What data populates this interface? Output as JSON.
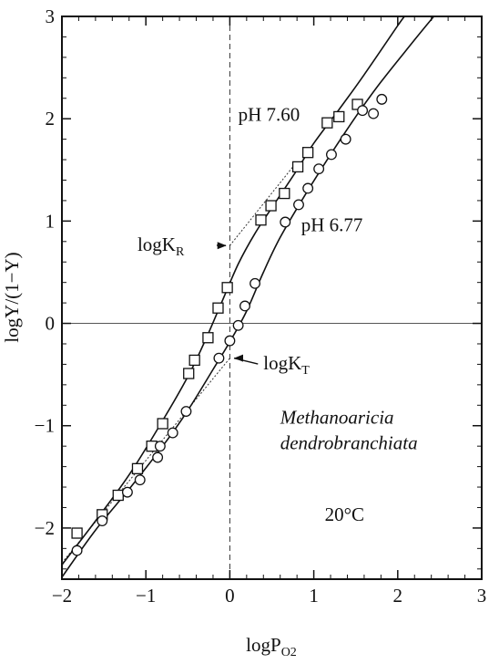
{
  "chart_data": {
    "type": "scatter",
    "xlabel": "logP",
    "xlabel_sub": "O2",
    "ylabel": "logY/(1−Y)",
    "xlim": [
      -2,
      3
    ],
    "ylim": [
      -2.5,
      3
    ],
    "x_ticks": [
      -2,
      -1,
      0,
      1,
      2,
      3
    ],
    "y_ticks": [
      -2,
      -1,
      0,
      1,
      2,
      3
    ],
    "x_tick_labels": [
      "−2",
      "−1",
      "0",
      "1",
      "2",
      "3"
    ],
    "y_tick_labels": [
      "−2",
      "−1",
      "0",
      "1",
      "2",
      "3"
    ],
    "grid": false,
    "reference_lines": {
      "x": 0,
      "y": 0
    },
    "series": [
      {
        "name": "pH 7.60",
        "marker": "square",
        "points": [
          [
            -1.82,
            -2.05
          ],
          [
            -1.52,
            -1.87
          ],
          [
            -1.33,
            -1.68
          ],
          [
            -1.1,
            -1.42
          ],
          [
            -0.93,
            -1.2
          ],
          [
            -0.8,
            -0.98
          ],
          [
            -0.49,
            -0.49
          ],
          [
            -0.42,
            -0.36
          ],
          [
            -0.26,
            -0.14
          ],
          [
            -0.14,
            0.15
          ],
          [
            -0.03,
            0.35
          ],
          [
            0.37,
            1.01
          ],
          [
            0.49,
            1.15
          ],
          [
            0.65,
            1.27
          ],
          [
            0.81,
            1.53
          ],
          [
            0.93,
            1.67
          ],
          [
            1.16,
            1.96
          ],
          [
            1.3,
            2.02
          ],
          [
            1.52,
            2.14
          ]
        ],
        "curve": [
          [
            -2.0,
            -2.36
          ],
          [
            -1.6,
            -1.93
          ],
          [
            -1.2,
            -1.48
          ],
          [
            -0.8,
            -0.95
          ],
          [
            -0.5,
            -0.52
          ],
          [
            -0.3,
            -0.18
          ],
          [
            -0.1,
            0.2
          ],
          [
            0.1,
            0.58
          ],
          [
            0.3,
            0.88
          ],
          [
            0.5,
            1.13
          ],
          [
            0.8,
            1.5
          ],
          [
            1.0,
            1.76
          ],
          [
            1.3,
            2.09
          ],
          [
            1.6,
            2.43
          ],
          [
            2.0,
            2.91
          ],
          [
            2.08,
            3.0
          ]
        ]
      },
      {
        "name": "pH 6.77",
        "marker": "circle",
        "points": [
          [
            -1.82,
            -2.22
          ],
          [
            -1.52,
            -1.93
          ],
          [
            -1.22,
            -1.65
          ],
          [
            -1.07,
            -1.53
          ],
          [
            -0.86,
            -1.31
          ],
          [
            -0.83,
            -1.2
          ],
          [
            -0.68,
            -1.07
          ],
          [
            -0.52,
            -0.86
          ],
          [
            -0.13,
            -0.34
          ],
          [
            0.0,
            -0.17
          ],
          [
            0.1,
            -0.02
          ],
          [
            0.18,
            0.17
          ],
          [
            0.3,
            0.39
          ],
          [
            0.66,
            0.99
          ],
          [
            0.82,
            1.16
          ],
          [
            0.93,
            1.32
          ],
          [
            1.06,
            1.51
          ],
          [
            1.21,
            1.65
          ],
          [
            1.38,
            1.8
          ],
          [
            1.58,
            2.08
          ],
          [
            1.71,
            2.05
          ],
          [
            1.81,
            2.19
          ]
        ],
        "curve": [
          [
            -2.0,
            -2.48
          ],
          [
            -1.6,
            -2.02
          ],
          [
            -1.2,
            -1.62
          ],
          [
            -0.8,
            -1.2
          ],
          [
            -0.5,
            -0.85
          ],
          [
            -0.2,
            -0.45
          ],
          [
            0.0,
            -0.18
          ],
          [
            0.2,
            0.12
          ],
          [
            0.4,
            0.5
          ],
          [
            0.6,
            0.84
          ],
          [
            0.9,
            1.26
          ],
          [
            1.2,
            1.65
          ],
          [
            1.5,
            2.02
          ],
          [
            1.8,
            2.36
          ],
          [
            2.2,
            2.77
          ],
          [
            2.43,
            3.0
          ]
        ]
      }
    ],
    "asymptotes": [
      {
        "from": [
          -2.0,
          -2.34
        ],
        "to": [
          0.0,
          -0.34
        ]
      },
      {
        "from": [
          0.0,
          0.76
        ],
        "to": [
          0.8,
          1.58
        ]
      }
    ],
    "annotations": [
      {
        "text": "pH 7.60",
        "x": 0.1,
        "y": 1.98,
        "style": "normal"
      },
      {
        "text": "pH 6.77",
        "x": 0.85,
        "y": 0.9,
        "style": "normal"
      },
      {
        "text": "logK",
        "sub": "R",
        "x": -1.1,
        "y": 0.71,
        "style": "normal",
        "arrow_to": [
          -0.04,
          0.76
        ]
      },
      {
        "text": "logK",
        "sub": "T",
        "x": 0.4,
        "y": -0.45,
        "style": "normal",
        "arrow_to": [
          0.05,
          -0.34
        ]
      },
      {
        "text": "Methanoaricia",
        "x": 0.6,
        "y": -0.98,
        "style": "italic"
      },
      {
        "text": "dendrobranchiata",
        "x": 0.6,
        "y": -1.23,
        "style": "italic"
      },
      {
        "text": "20°C",
        "x": 1.13,
        "y": -1.93,
        "style": "normal"
      }
    ]
  }
}
